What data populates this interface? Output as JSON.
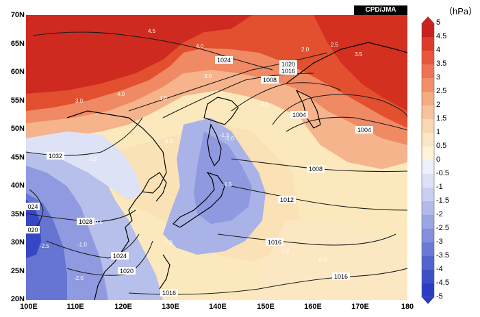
{
  "credit": "CPD/JMA",
  "unit_label": "（hPa）",
  "lat_labels": [
    "70N",
    "65N",
    "60N",
    "55N",
    "50N",
    "45N",
    "40N",
    "35N",
    "30N",
    "25N",
    "20N"
  ],
  "lon_labels": [
    "100E",
    "110E",
    "120E",
    "130E",
    "140E",
    "150E",
    "160E",
    "170E",
    "180"
  ],
  "colorbar": {
    "ticks": [
      "5",
      "4.5",
      "4",
      "3.5",
      "3",
      "2.5",
      "2",
      "1.5",
      "1",
      "0.5",
      "0",
      "-0.5",
      "-1",
      "-1.5",
      "-2",
      "-2.5",
      "-3",
      "-3.5",
      "-4",
      "-4.5",
      "-5"
    ],
    "colors": [
      "#c8201e",
      "#dc3b2a",
      "#e8573c",
      "#ef7252",
      "#f28f68",
      "#f5aa82",
      "#f8c39c",
      "#fad8b2",
      "#fbe7c6",
      "#fdf3d9",
      "#eef0fa",
      "#dde1f6",
      "#c9cff0",
      "#b2baea",
      "#9aa5e3",
      "#828fdc",
      "#6a79d4",
      "#5464cd",
      "#3d4fc7",
      "#2a3cc2"
    ]
  },
  "isobar_labels": [
    "1024",
    "1020",
    "1016",
    "1008",
    "1004",
    "1004",
    "1032",
    "1008",
    "1012",
    "1028",
    "1016",
    "1024",
    "1020",
    "1016",
    "1016",
    "024",
    "020"
  ],
  "anomaly_labels": [
    "4.5",
    "4.0",
    "3.0",
    "2.5",
    "3.5",
    "4.0",
    "3.0",
    "2.0",
    "1.5",
    "0.5",
    "0.0",
    "-0.5",
    "-1.5",
    "-1.0",
    "-2.0",
    "-2.5",
    "-1.0",
    "-1.5",
    "0.0",
    "0.0",
    "-0.5",
    "-1.0"
  ],
  "colors": {
    "credit_bg": "#000000",
    "isobar": "#1a1a1a",
    "grid_bg": "#f7e6b0"
  }
}
